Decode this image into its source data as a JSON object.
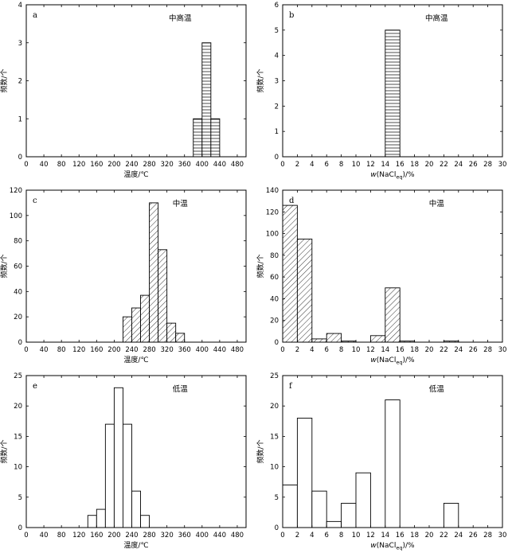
{
  "figure": {
    "y_axis_label": "频数/个"
  },
  "chart_data": [
    {
      "id": "a",
      "type": "bar",
      "panel_label": "a",
      "title": "中高温",
      "xlabel": "温度/℃",
      "ylabel": "频数/个",
      "xlim": [
        0,
        500
      ],
      "ylim": [
        0,
        4
      ],
      "xticks": [
        0,
        40,
        80,
        120,
        160,
        200,
        240,
        280,
        320,
        360,
        400,
        440,
        480
      ],
      "yticks": [
        0,
        1,
        2,
        3,
        4
      ],
      "fill": "horizontal-hatch",
      "bins": [
        {
          "x0": 380,
          "x1": 400,
          "value": 1
        },
        {
          "x0": 400,
          "x1": 420,
          "value": 3
        },
        {
          "x0": 420,
          "x1": 440,
          "value": 1
        }
      ]
    },
    {
      "id": "b",
      "type": "bar",
      "panel_label": "b",
      "title": "中高温",
      "xlabel": "w(NaCl",
      "xlabel_sub": "eq",
      "xlabel_tail": ")/%",
      "ylabel": "频数/个",
      "xlim": [
        0,
        30
      ],
      "ylim": [
        0,
        6
      ],
      "xticks": [
        0,
        2,
        4,
        6,
        8,
        10,
        12,
        14,
        16,
        18,
        20,
        22,
        24,
        26,
        28,
        30
      ],
      "yticks": [
        0,
        1,
        2,
        3,
        4,
        5,
        6
      ],
      "fill": "horizontal-hatch",
      "bins": [
        {
          "x0": 14,
          "x1": 16,
          "value": 5
        }
      ]
    },
    {
      "id": "c",
      "type": "bar",
      "panel_label": "c",
      "title": "中温",
      "xlabel": "温度/℃",
      "ylabel": "频数/个",
      "xlim": [
        0,
        500
      ],
      "ylim": [
        0,
        120
      ],
      "xticks": [
        0,
        40,
        80,
        120,
        160,
        200,
        240,
        280,
        320,
        360,
        400,
        440,
        480
      ],
      "yticks": [
        0,
        20,
        40,
        60,
        80,
        100,
        120
      ],
      "fill": "diagonal-hatch",
      "bins": [
        {
          "x0": 220,
          "x1": 240,
          "value": 20
        },
        {
          "x0": 240,
          "x1": 260,
          "value": 27
        },
        {
          "x0": 260,
          "x1": 280,
          "value": 37
        },
        {
          "x0": 280,
          "x1": 300,
          "value": 110
        },
        {
          "x0": 300,
          "x1": 320,
          "value": 73
        },
        {
          "x0": 320,
          "x1": 340,
          "value": 15
        },
        {
          "x0": 340,
          "x1": 360,
          "value": 7
        }
      ]
    },
    {
      "id": "d",
      "type": "bar",
      "panel_label": "d",
      "title": "中温",
      "xlabel": "w(NaCl",
      "xlabel_sub": "eq",
      "xlabel_tail": ")/%",
      "ylabel": "频数/个",
      "xlim": [
        0,
        30
      ],
      "ylim": [
        0,
        140
      ],
      "xticks": [
        0,
        2,
        4,
        6,
        8,
        10,
        12,
        14,
        16,
        18,
        20,
        22,
        24,
        26,
        28,
        30
      ],
      "yticks": [
        0,
        20,
        40,
        60,
        80,
        100,
        120,
        140
      ],
      "fill": "diagonal-hatch",
      "bins": [
        {
          "x0": 0,
          "x1": 2,
          "value": 126
        },
        {
          "x0": 2,
          "x1": 4,
          "value": 95
        },
        {
          "x0": 4,
          "x1": 6,
          "value": 3
        },
        {
          "x0": 6,
          "x1": 8,
          "value": 8
        },
        {
          "x0": 8,
          "x1": 10,
          "value": 1
        },
        {
          "x0": 12,
          "x1": 14,
          "value": 6
        },
        {
          "x0": 14,
          "x1": 16,
          "value": 50
        },
        {
          "x0": 16,
          "x1": 18,
          "value": 1
        },
        {
          "x0": 22,
          "x1": 24,
          "value": 1
        }
      ]
    },
    {
      "id": "e",
      "type": "bar",
      "panel_label": "e",
      "title": "低温",
      "xlabel": "温度/℃",
      "ylabel": "频数/个",
      "xlim": [
        0,
        500
      ],
      "ylim": [
        0,
        25
      ],
      "xticks": [
        0,
        40,
        80,
        120,
        160,
        200,
        240,
        280,
        320,
        360,
        400,
        440,
        480
      ],
      "yticks": [
        0,
        5,
        10,
        15,
        20,
        25
      ],
      "fill": "none",
      "bins": [
        {
          "x0": 140,
          "x1": 160,
          "value": 2
        },
        {
          "x0": 160,
          "x1": 180,
          "value": 3
        },
        {
          "x0": 180,
          "x1": 200,
          "value": 17
        },
        {
          "x0": 200,
          "x1": 220,
          "value": 23
        },
        {
          "x0": 220,
          "x1": 240,
          "value": 17
        },
        {
          "x0": 240,
          "x1": 260,
          "value": 6
        },
        {
          "x0": 260,
          "x1": 280,
          "value": 2
        }
      ]
    },
    {
      "id": "f",
      "type": "bar",
      "panel_label": "f",
      "title": "低温",
      "xlabel": "w(NaCl",
      "xlabel_sub": "eq",
      "xlabel_tail": ")/%",
      "ylabel": "频数/个",
      "xlim": [
        0,
        30
      ],
      "ylim": [
        0,
        25
      ],
      "xticks": [
        0,
        2,
        4,
        6,
        8,
        10,
        12,
        14,
        16,
        18,
        20,
        22,
        24,
        26,
        28,
        30
      ],
      "yticks": [
        0,
        5,
        10,
        15,
        20,
        25
      ],
      "fill": "none",
      "bins": [
        {
          "x0": 0,
          "x1": 2,
          "value": 7
        },
        {
          "x0": 2,
          "x1": 4,
          "value": 18
        },
        {
          "x0": 4,
          "x1": 6,
          "value": 6
        },
        {
          "x0": 6,
          "x1": 8,
          "value": 1
        },
        {
          "x0": 8,
          "x1": 10,
          "value": 4
        },
        {
          "x0": 10,
          "x1": 12,
          "value": 9
        },
        {
          "x0": 14,
          "x1": 16,
          "value": 21
        },
        {
          "x0": 22,
          "x1": 24,
          "value": 4
        }
      ]
    }
  ]
}
